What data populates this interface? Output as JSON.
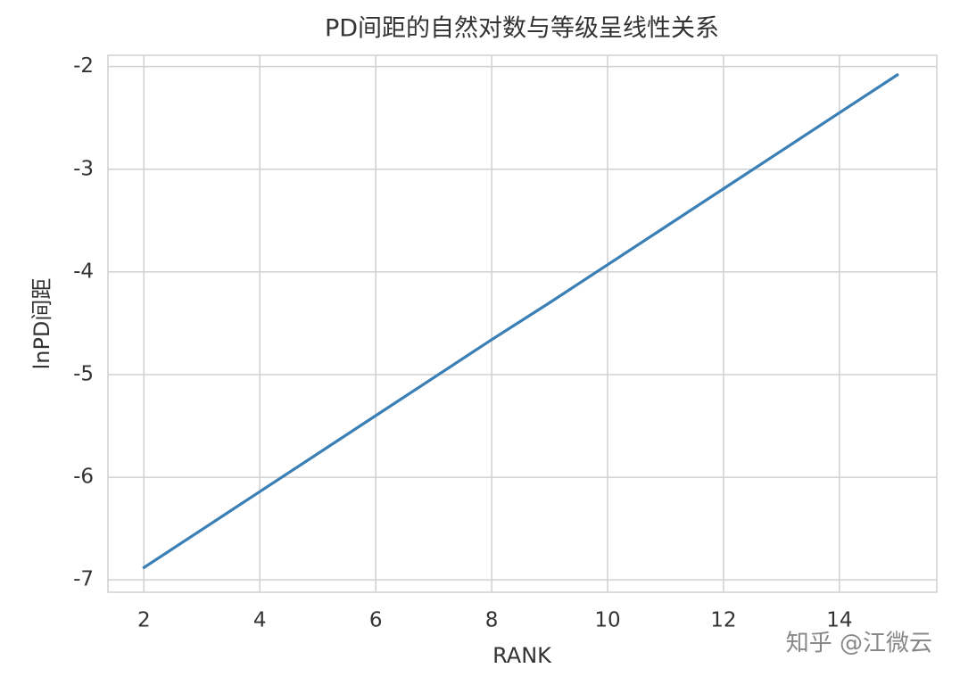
{
  "chart_data": {
    "type": "line",
    "title": "PD间距的自然对数与等级呈线性关系",
    "xlabel": "RANK",
    "ylabel": "lnPD间距",
    "x": [
      2,
      3,
      4,
      5,
      6,
      7,
      8,
      9,
      10,
      11,
      12,
      13,
      14,
      15
    ],
    "series": [
      {
        "name": "lnPD",
        "color": "#3a7fb5",
        "values": [
          -6.88,
          -6.51,
          -6.14,
          -5.77,
          -5.4,
          -5.03,
          -4.66,
          -4.3,
          -3.93,
          -3.56,
          -3.19,
          -2.82,
          -2.45,
          -2.08
        ]
      }
    ],
    "xlim": [
      1.38,
      15.68
    ],
    "ylim": [
      -7.12,
      -1.89
    ],
    "xticks": [
      2,
      4,
      6,
      8,
      10,
      12,
      14
    ],
    "yticks": [
      -7,
      -6,
      -5,
      -4,
      -3,
      -2
    ],
    "grid": true,
    "watermark": "知乎 @江微云"
  }
}
